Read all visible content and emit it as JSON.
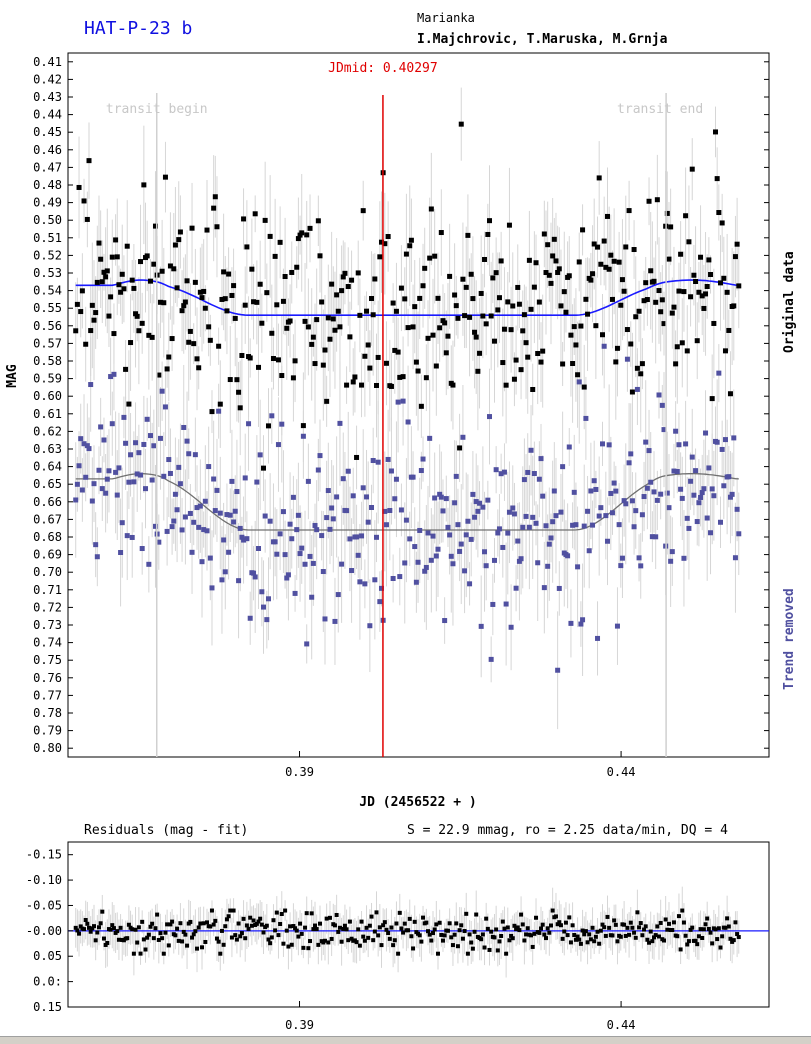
{
  "header": {
    "planet": "HAT-P-23 b",
    "observatory": "Marianka",
    "observers": "I.Majchrovic, T.Maruska, M.Grnja"
  },
  "chart_data": [
    {
      "type": "scatter",
      "ylabel": "MAG",
      "xlabel": "JD (2456522 + )",
      "xlim": [
        0.354,
        0.463
      ],
      "ylim": [
        0.805,
        0.405
      ],
      "y_inverted": true,
      "x_ticks": [
        0.39,
        0.44
      ],
      "y_ticks": [
        0.41,
        0.42,
        0.43,
        0.44,
        0.45,
        0.46,
        0.47,
        0.48,
        0.49,
        0.5,
        0.51,
        0.52,
        0.53,
        0.54,
        0.55,
        0.56,
        0.57,
        0.58,
        0.59,
        0.6,
        0.61,
        0.62,
        0.63,
        0.64,
        0.65,
        0.66,
        0.67,
        0.68,
        0.69,
        0.7,
        0.71,
        0.72,
        0.73,
        0.74,
        0.75,
        0.76,
        0.77,
        0.78,
        0.79,
        0.8
      ],
      "y_tick_labels": [
        "0.41",
        "0.42",
        "0.43",
        "0.44",
        "0.45",
        "0.46",
        "0.47",
        "0.48",
        "0.49",
        "0.50",
        "0.51",
        "0.52",
        "0.53",
        "0.54",
        "0.55",
        "0.56",
        "0.57",
        "0.58",
        "0.59",
        "0.60",
        "0.61",
        "0.62",
        "0.63",
        "0.64",
        "0.65",
        "0.66",
        "0.67",
        "0.68",
        "0.69",
        "0.70",
        "0.71",
        "0.72",
        "0.73",
        "0.74",
        "0.75",
        "0.76",
        "0.77",
        "0.78",
        "0.79",
        "0.80"
      ],
      "x_tick_labels": [
        "0.39",
        "0.44"
      ],
      "jdmid": {
        "label": "JDmid: 0.40297",
        "x": 0.40297
      },
      "transit_begin": {
        "label": "transit begin",
        "x": 0.3678
      },
      "transit_end": {
        "label": "transit end",
        "x": 0.447
      },
      "grid": false,
      "series": [
        {
          "name": "Original data",
          "color": "#000000",
          "kind": "points",
          "baseline": 0.537,
          "depth": 0.017,
          "scatter": 0.03
        },
        {
          "name": "Trend removed",
          "color": "#5050a0",
          "kind": "points",
          "baseline": 0.647,
          "depth": 0.029,
          "scatter": 0.032
        }
      ],
      "fits": [
        {
          "color": "#1a1aff",
          "baseline": 0.537,
          "bottom": 0.554
        },
        {
          "color": "#707070",
          "baseline": 0.647,
          "bottom": 0.676
        }
      ],
      "n_points": 400,
      "error_bar_color": "#d6d6d6"
    },
    {
      "type": "scatter",
      "title": "Residuals (mag - fit)",
      "stats": "S = 22.9 mmag, ro = 2.25 data/min, DQ = 4",
      "xlim": [
        0.354,
        0.463
      ],
      "ylim": [
        0.15,
        -0.175
      ],
      "y_tick_labels": [
        "-0.15",
        "-0.10",
        "-0.05",
        "-0.00",
        "0.05",
        "0.0:",
        "0.15"
      ],
      "y_tick_values": [
        -0.15,
        -0.1,
        -0.05,
        0.0,
        0.05,
        0.1,
        0.15
      ],
      "x_tick_labels": [
        "0.39",
        "0.44"
      ],
      "x_ticks": [
        0.39,
        0.44
      ],
      "zero_line_color": "#1a1aff",
      "series": [
        {
          "name": "",
          "color": "#000000",
          "kind": "points",
          "scatter": 0.022
        }
      ]
    }
  ]
}
